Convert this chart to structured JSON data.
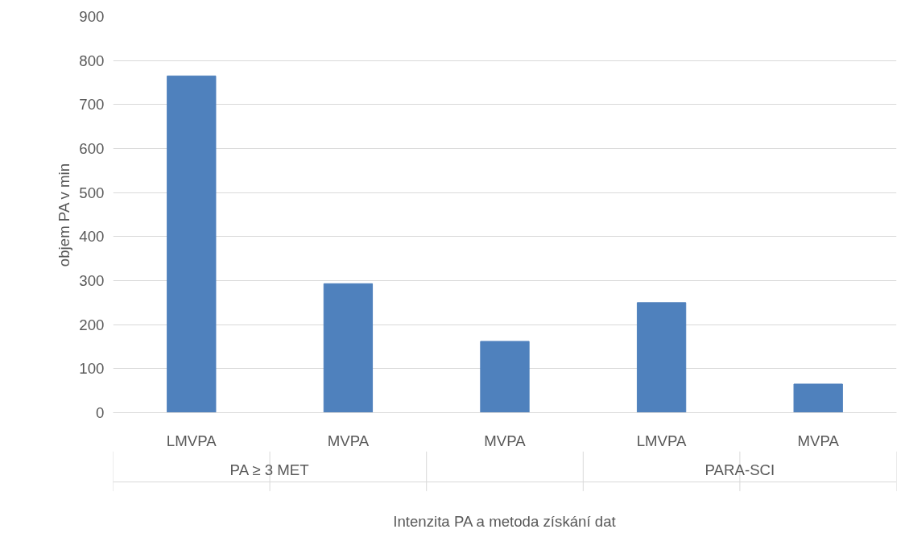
{
  "chart_data": {
    "type": "bar",
    "xlabel": "Intenzita PA a metoda získání dat",
    "ylabel": "objem PA v min",
    "categories": [
      "LMVPA",
      "MVPA",
      "MVPA",
      "LMVPA",
      "MVPA"
    ],
    "annotations": [
      "PA ≥ 3 MET",
      "PARA-SCI"
    ],
    "values": [
      765,
      293,
      162,
      250,
      65
    ],
    "color": "#4f81bd",
    "ylim": [
      0,
      900
    ],
    "yticks": [
      0,
      100,
      200,
      300,
      400,
      500,
      600,
      700,
      800,
      900
    ],
    "grid": "y"
  }
}
